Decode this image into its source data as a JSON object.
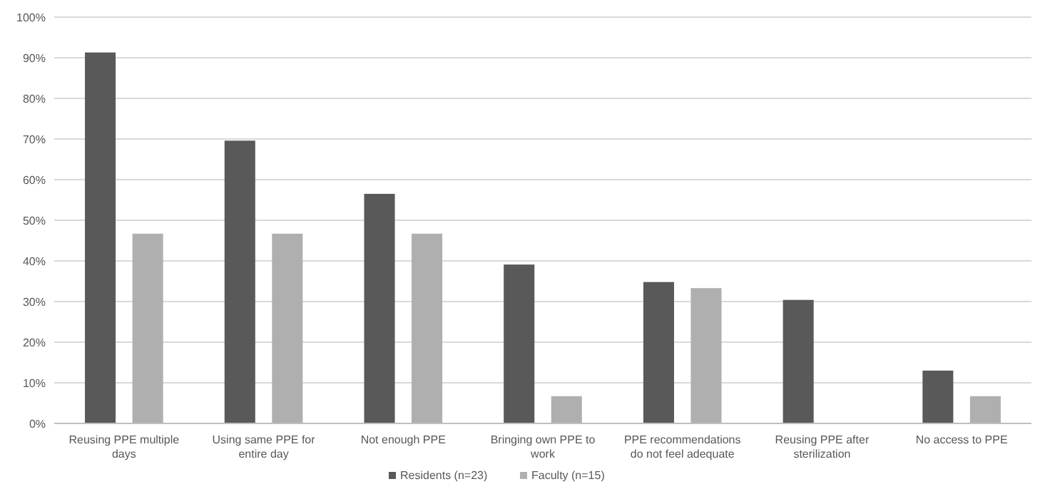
{
  "chart_data": {
    "type": "bar",
    "categories": [
      "Reusing PPE multiple days",
      "Using same PPE for entire day",
      "Not enough PPE",
      "Bringing own PPE to work",
      "PPE recommendations do not feel adequate",
      "Reusing PPE after sterilization",
      "No access to PPE"
    ],
    "series": [
      {
        "name": "Residents (n=23)",
        "color": "#595959",
        "values": [
          91.3,
          69.6,
          56.5,
          39.1,
          34.8,
          30.4,
          13.0
        ]
      },
      {
        "name": "Faculty (n=15)",
        "color": "#afafaf",
        "values": [
          46.7,
          46.7,
          46.7,
          6.7,
          33.3,
          0,
          6.7
        ]
      }
    ],
    "ylim": [
      0,
      100
    ],
    "yticks": [
      {
        "value": 0,
        "label": "0%"
      },
      {
        "value": 10,
        "label": "10%"
      },
      {
        "value": 20,
        "label": "20%"
      },
      {
        "value": 30,
        "label": "30%"
      },
      {
        "value": 40,
        "label": "40%"
      },
      {
        "value": 50,
        "label": "50%"
      },
      {
        "value": 60,
        "label": "60%"
      },
      {
        "value": 70,
        "label": "70%"
      },
      {
        "value": 80,
        "label": "80%"
      },
      {
        "value": 90,
        "label": "90%"
      },
      {
        "value": 100,
        "label": "100%"
      }
    ],
    "grid": "y",
    "legend": "bottom"
  }
}
